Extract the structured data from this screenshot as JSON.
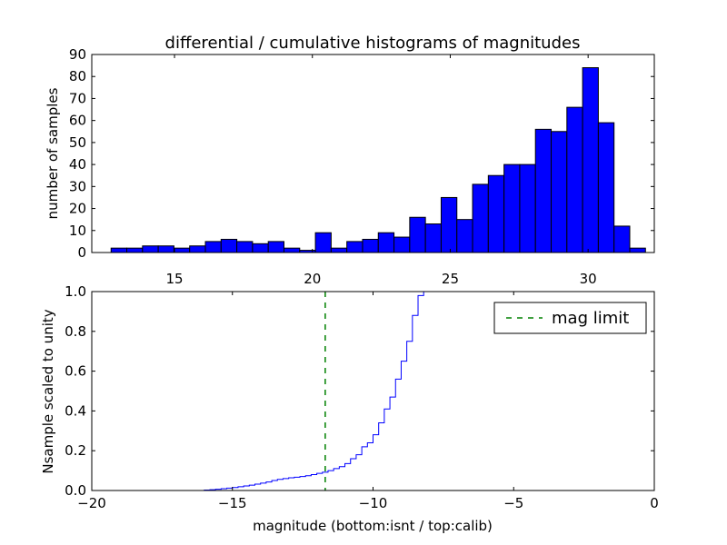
{
  "chart_data": [
    {
      "type": "bar",
      "panel": "top",
      "title": "differential / cumulative histograms of magnitudes",
      "xlabel": "",
      "ylabel": "number of samples",
      "xlim": [
        12.0,
        32.4
      ],
      "ylim": [
        0,
        90
      ],
      "xticks": [
        15,
        20,
        25,
        30
      ],
      "yticks": [
        0,
        10,
        20,
        30,
        40,
        50,
        60,
        70,
        80,
        90
      ],
      "bar_color": "#0000ff",
      "bins": [
        {
          "left": 12.7,
          "right": 13.27,
          "value": 2
        },
        {
          "left": 13.27,
          "right": 13.84,
          "value": 2
        },
        {
          "left": 13.84,
          "right": 14.41,
          "value": 3
        },
        {
          "left": 14.41,
          "right": 14.98,
          "value": 3
        },
        {
          "left": 14.98,
          "right": 15.55,
          "value": 2
        },
        {
          "left": 15.55,
          "right": 16.12,
          "value": 3
        },
        {
          "left": 16.12,
          "right": 16.69,
          "value": 5
        },
        {
          "left": 16.69,
          "right": 17.26,
          "value": 6
        },
        {
          "left": 17.26,
          "right": 17.83,
          "value": 5
        },
        {
          "left": 17.83,
          "right": 18.4,
          "value": 4
        },
        {
          "left": 18.4,
          "right": 18.97,
          "value": 5
        },
        {
          "left": 18.97,
          "right": 19.54,
          "value": 2
        },
        {
          "left": 19.54,
          "right": 20.11,
          "value": 1
        },
        {
          "left": 20.11,
          "right": 20.68,
          "value": 9
        },
        {
          "left": 20.68,
          "right": 21.25,
          "value": 2
        },
        {
          "left": 21.25,
          "right": 21.82,
          "value": 5
        },
        {
          "left": 21.82,
          "right": 22.39,
          "value": 6
        },
        {
          "left": 22.39,
          "right": 22.96,
          "value": 9
        },
        {
          "left": 22.96,
          "right": 23.53,
          "value": 7
        },
        {
          "left": 23.53,
          "right": 24.1,
          "value": 16
        },
        {
          "left": 24.1,
          "right": 24.67,
          "value": 13
        },
        {
          "left": 24.67,
          "right": 25.24,
          "value": 25
        },
        {
          "left": 25.24,
          "right": 25.81,
          "value": 15
        },
        {
          "left": 25.81,
          "right": 26.38,
          "value": 31
        },
        {
          "left": 26.38,
          "right": 26.95,
          "value": 35
        },
        {
          "left": 26.95,
          "right": 27.52,
          "value": 40
        },
        {
          "left": 27.52,
          "right": 28.09,
          "value": 40
        },
        {
          "left": 28.09,
          "right": 28.66,
          "value": 56
        },
        {
          "left": 28.66,
          "right": 29.23,
          "value": 55
        },
        {
          "left": 29.23,
          "right": 29.8,
          "value": 66
        },
        {
          "left": 29.8,
          "right": 30.37,
          "value": 84
        },
        {
          "left": 30.37,
          "right": 30.94,
          "value": 59
        },
        {
          "left": 30.94,
          "right": 31.51,
          "value": 12
        },
        {
          "left": 31.51,
          "right": 32.08,
          "value": 2
        }
      ]
    },
    {
      "type": "line",
      "panel": "bottom",
      "title": "",
      "xlabel": "magnitude (bottom:isnt / top:calib)",
      "ylabel": "Nsample scaled to unity",
      "xlim": [
        -20,
        0
      ],
      "ylim": [
        0.0,
        1.0
      ],
      "xticks": [
        -20,
        -15,
        -10,
        -5,
        0
      ],
      "xtick_labels": [
        "−20",
        "−15",
        "−10",
        "−5",
        "0"
      ],
      "yticks": [
        0.0,
        0.2,
        0.4,
        0.6,
        0.8,
        1.0
      ],
      "ytick_labels": [
        "0.0",
        "0.2",
        "0.4",
        "0.6",
        "0.8",
        "1.0"
      ],
      "series": [
        {
          "style": "step",
          "color": "#0000ff",
          "x": [
            -20.0,
            -16.0,
            -15.8,
            -15.6,
            -15.4,
            -15.2,
            -15.0,
            -14.8,
            -14.6,
            -14.4,
            -14.2,
            -14.0,
            -13.8,
            -13.6,
            -13.4,
            -13.2,
            -13.0,
            -12.8,
            -12.6,
            -12.4,
            -12.2,
            -12.0,
            -11.8,
            -11.6,
            -11.4,
            -11.2,
            -11.0,
            -10.8,
            -10.6,
            -10.4,
            -10.2,
            -10.0,
            -9.8,
            -9.6,
            -9.4,
            -9.2,
            -9.0,
            -8.8,
            -8.6,
            -8.4,
            -8.2,
            -8.0,
            -7.8,
            -7.6
          ],
          "y": [
            0.0,
            0.002,
            0.004,
            0.006,
            0.009,
            0.012,
            0.015,
            0.019,
            0.023,
            0.027,
            0.032,
            0.037,
            0.043,
            0.05,
            0.056,
            0.06,
            0.064,
            0.067,
            0.07,
            0.074,
            0.08,
            0.086,
            0.092,
            0.1,
            0.11,
            0.12,
            0.135,
            0.16,
            0.18,
            0.22,
            0.24,
            0.28,
            0.34,
            0.41,
            0.47,
            0.56,
            0.65,
            0.75,
            0.88,
            0.98,
            1.0,
            1.0,
            1.0,
            1.0
          ]
        },
        {
          "name": "mag limit",
          "style": "dashed-vline",
          "color": "#008000",
          "x_value": -11.7
        }
      ],
      "legend": {
        "entries": [
          "mag limit"
        ],
        "placement": "top-right"
      }
    }
  ]
}
